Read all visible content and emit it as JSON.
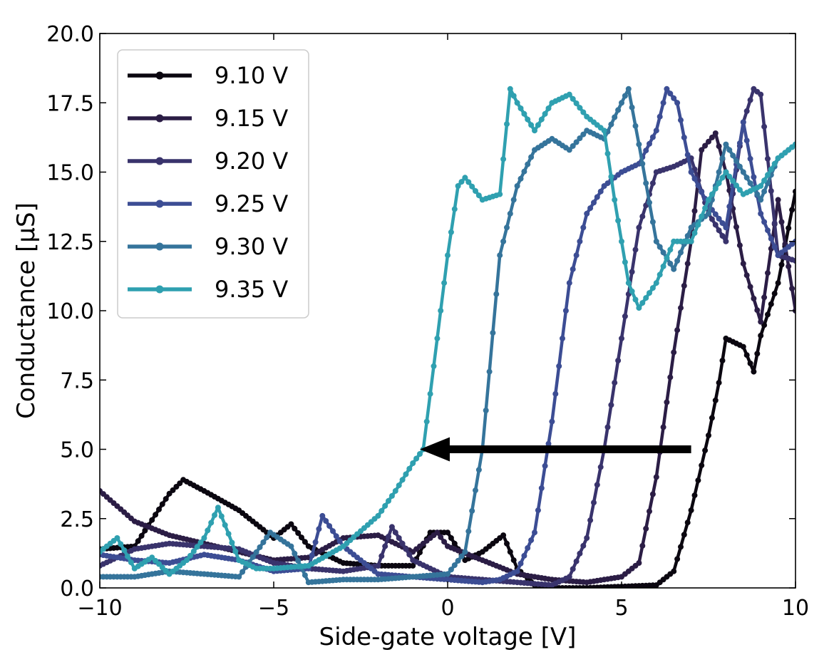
{
  "chart_data": {
    "type": "line",
    "title": "",
    "xlabel": "Side-gate voltage [V]",
    "ylabel": "Conductance [μS]",
    "xlim": [
      -10,
      10
    ],
    "ylim": [
      0,
      20
    ],
    "x_ticks": [
      -10,
      -5,
      0,
      5,
      10
    ],
    "x_tick_labels": [
      "−10",
      "−5",
      "0",
      "5",
      "10"
    ],
    "y_ticks": [
      0,
      2.5,
      5,
      7.5,
      10,
      12.5,
      15,
      17.5,
      20
    ],
    "y_tick_labels": [
      "0.0",
      "2.5",
      "5.0",
      "7.5",
      "10.0",
      "12.5",
      "15.0",
      "17.5",
      "20.0"
    ],
    "grid": false,
    "legend_position": "top-left",
    "annotation": {
      "type": "arrow",
      "from": [
        7.0,
        5.0
      ],
      "to": [
        -0.8,
        5.0
      ],
      "color": "#000000"
    },
    "series": [
      {
        "name": "9.10 V",
        "color": "#0b0710",
        "x": [
          -10,
          -9,
          -8,
          -7.6,
          -7,
          -6,
          -5,
          -4.5,
          -4,
          -3,
          -2,
          -1,
          -0.5,
          0,
          0.5,
          1,
          1.6,
          2,
          2.5,
          3,
          4,
          5,
          6,
          6.5,
          7,
          7.5,
          7.8,
          8,
          8.5,
          8.8,
          9,
          9.5,
          10
        ],
        "values": [
          1.4,
          1.5,
          3.4,
          3.9,
          3.5,
          2.8,
          1.8,
          2.3,
          1.5,
          0.9,
          0.8,
          0.8,
          2.0,
          2.0,
          1.0,
          1.3,
          1.9,
          0.7,
          0.1,
          0.0,
          0.0,
          0.05,
          0.1,
          0.6,
          2.8,
          5.5,
          7.4,
          9.0,
          8.7,
          7.8,
          9.1,
          11.0,
          14.3
        ]
      },
      {
        "name": "9.15 V",
        "color": "#2b1d45",
        "x": [
          -10,
          -9,
          -8,
          -7,
          -6,
          -5,
          -4,
          -3,
          -2,
          -1,
          -0.3,
          0,
          1,
          2,
          3,
          4,
          5,
          5.5,
          6,
          6.5,
          7,
          7.3,
          7.7,
          8,
          8.5,
          9,
          9.5,
          10
        ],
        "values": [
          3.5,
          2.4,
          1.9,
          1.6,
          1.3,
          1.0,
          1.1,
          1.8,
          1.9,
          1.3,
          2.0,
          1.5,
          1.0,
          0.5,
          0.3,
          0.2,
          0.4,
          0.9,
          4.0,
          8.5,
          12.5,
          15.8,
          16.4,
          15.0,
          11.7,
          9.6,
          14.0,
          10.0
        ]
      },
      {
        "name": "9.20 V",
        "color": "#39336c",
        "x": [
          -10,
          -9,
          -8,
          -7,
          -6,
          -5,
          -4,
          -3,
          -2,
          -1.6,
          -1,
          0,
          1,
          2,
          3,
          3.5,
          4,
          4.5,
          5,
          5.5,
          6,
          6.5,
          7,
          7.5,
          8,
          8.5,
          8.8,
          9,
          9.5,
          10
        ],
        "values": [
          0.8,
          1.4,
          1.6,
          1.5,
          1.4,
          0.9,
          0.7,
          0.6,
          0.8,
          2.2,
          1.0,
          0.4,
          0.3,
          0.2,
          0.1,
          0.4,
          1.8,
          5.0,
          9.0,
          13.0,
          15.0,
          15.2,
          15.5,
          13.5,
          12.5,
          16.8,
          18.0,
          17.8,
          12.0,
          11.8
        ]
      },
      {
        "name": "9.25 V",
        "color": "#3c4d94",
        "x": [
          -10,
          -9,
          -8,
          -7,
          -6,
          -5,
          -4,
          -3.6,
          -3,
          -2,
          -1,
          0,
          1,
          1.5,
          2,
          2.5,
          3,
          3.5,
          4,
          4.5,
          5,
          5.5,
          6,
          6.3,
          6.6,
          7,
          7.5,
          8,
          8.5,
          9,
          9.5,
          10
        ],
        "values": [
          1.2,
          1.0,
          0.9,
          1.2,
          1.0,
          0.6,
          0.7,
          2.6,
          1.5,
          0.5,
          0.4,
          0.3,
          0.2,
          0.3,
          0.6,
          2.0,
          6.0,
          11.0,
          13.5,
          14.5,
          15.0,
          15.3,
          16.5,
          18.0,
          17.5,
          15.0,
          13.8,
          13.0,
          16.8,
          13.5,
          12.0,
          12.5
        ]
      },
      {
        "name": "9.30 V",
        "color": "#35749b",
        "x": [
          -10,
          -9,
          -8,
          -7,
          -6,
          -5.1,
          -4.5,
          -4,
          -3,
          -2,
          -1,
          0,
          0.5,
          1,
          1.5,
          2,
          2.5,
          3,
          3.5,
          4,
          4.5,
          5,
          5.2,
          5.5,
          6,
          6.5,
          7,
          7.5,
          8,
          8.5,
          9,
          9.5,
          10
        ],
        "values": [
          0.4,
          0.4,
          0.6,
          0.5,
          0.4,
          2.0,
          1.5,
          0.2,
          0.3,
          0.3,
          0.4,
          0.5,
          1.3,
          5.0,
          12.0,
          14.5,
          15.8,
          16.2,
          15.8,
          16.5,
          16.2,
          17.5,
          18.0,
          16.0,
          12.5,
          11.5,
          13.0,
          13.5,
          16.0,
          15.0,
          14.0,
          15.5,
          16.0
        ]
      },
      {
        "name": "9.35 V",
        "color": "#2fa0b0",
        "x": [
          -10,
          -9.5,
          -9,
          -8.5,
          -8,
          -7.5,
          -7,
          -6.6,
          -6,
          -5.5,
          -5,
          -4,
          -3,
          -2,
          -1.5,
          -1,
          -0.7,
          -0.3,
          0,
          0.3,
          0.5,
          1,
          1.5,
          1.8,
          2,
          2.5,
          3,
          3.5,
          4,
          4.5,
          4.8,
          5.2,
          5.5,
          6,
          6.5,
          7,
          7.5,
          8,
          8.5,
          9,
          9.5,
          10
        ],
        "values": [
          1.3,
          1.8,
          0.7,
          1.1,
          0.5,
          1.0,
          1.8,
          2.9,
          1.0,
          0.7,
          0.7,
          0.8,
          1.5,
          2.6,
          3.5,
          4.5,
          5.0,
          9.0,
          12.0,
          14.5,
          14.8,
          14.0,
          14.2,
          18.0,
          17.5,
          16.5,
          17.5,
          17.8,
          17.0,
          16.5,
          14.0,
          11.0,
          10.1,
          11.0,
          12.5,
          12.5,
          14.0,
          15.0,
          14.2,
          14.5,
          15.5,
          16.0
        ]
      }
    ]
  }
}
